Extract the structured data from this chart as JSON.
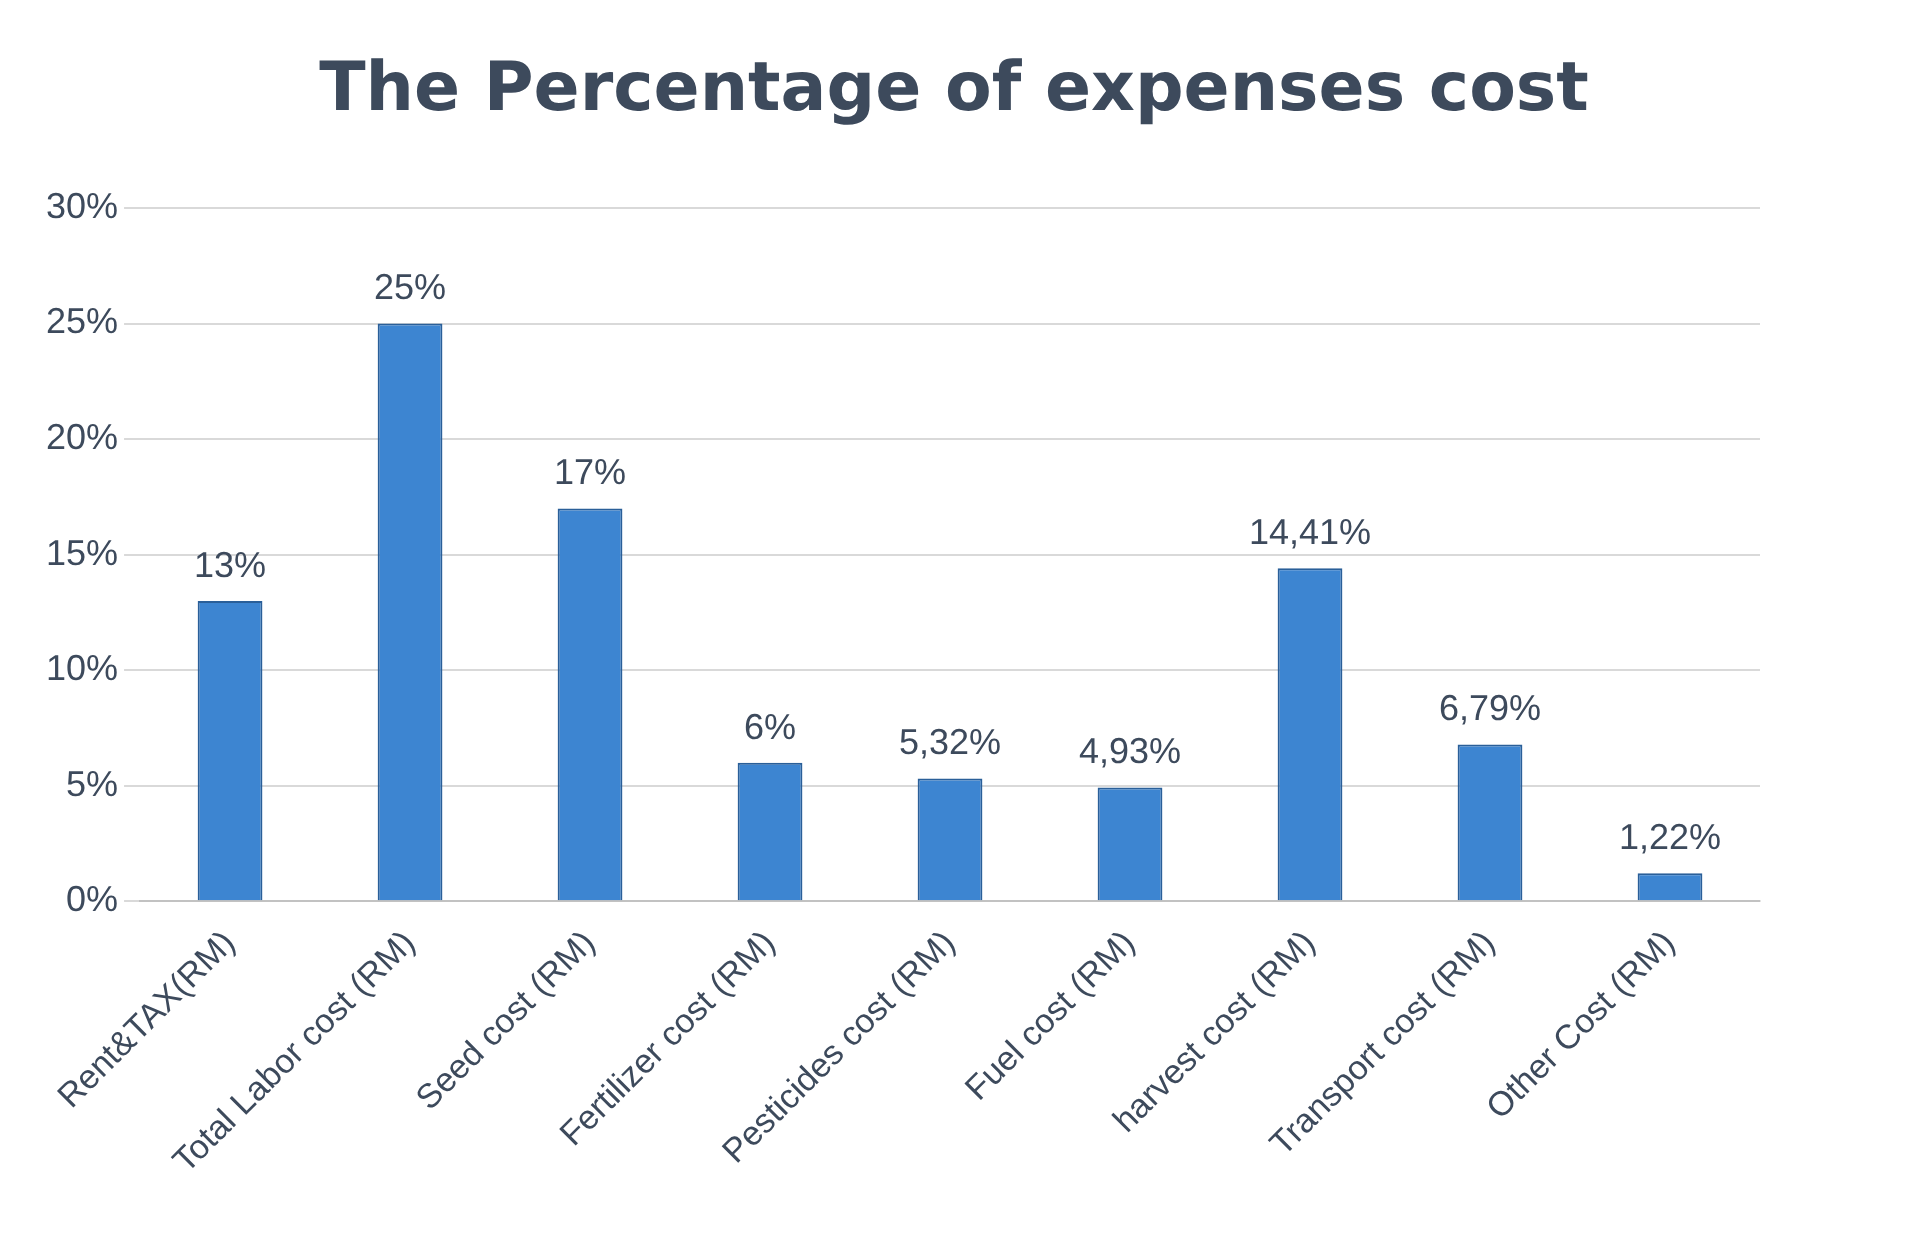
{
  "chart_data": {
    "type": "bar",
    "title": "The Percentage of expenses cost",
    "categories": [
      "Rent&TAX(RM)",
      "Total Labor cost (RM)",
      "Seed cost (RM)",
      "Fertilizer cost (RM)",
      "Pesticides cost (RM)",
      "Fuel cost (RM)",
      "harvest cost (RM)",
      "Transport cost (RM)",
      "Other Cost (RM)"
    ],
    "values": [
      13,
      25,
      17,
      6,
      5.32,
      4.93,
      14.41,
      6.79,
      1.22
    ],
    "value_labels": [
      "13%",
      "25%",
      "17%",
      "6%",
      "5,32%",
      "4,93%",
      "14,41%",
      "6,79%",
      "1,22%"
    ],
    "color": "#3d85d1",
    "ylim": [
      0,
      30
    ],
    "yticks": [
      {
        "value": 0,
        "label": "0%"
      },
      {
        "value": 5,
        "label": "5%"
      },
      {
        "value": 10,
        "label": "10%"
      },
      {
        "value": 15,
        "label": "15%"
      },
      {
        "value": 20,
        "label": "20%"
      },
      {
        "value": 25,
        "label": "25%"
      },
      {
        "value": 30,
        "label": "30%"
      }
    ],
    "grid": "y"
  }
}
